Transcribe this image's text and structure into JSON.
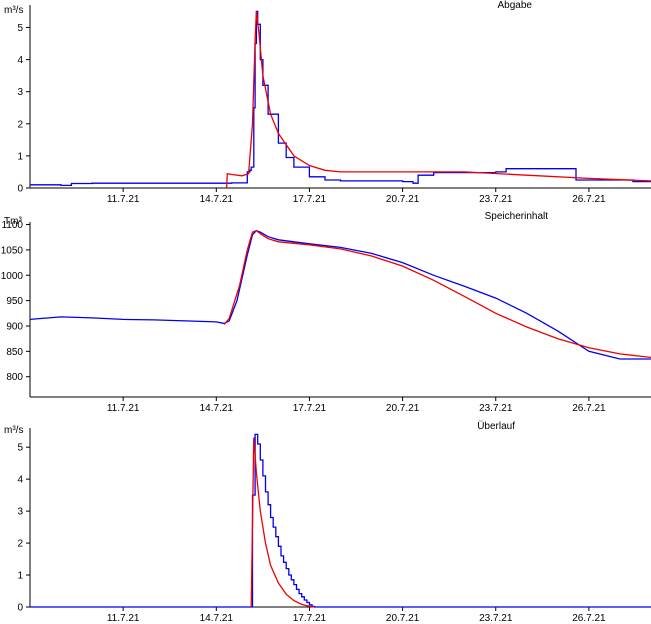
{
  "colors": {
    "blue": "#0000ee",
    "red": "#ee0000",
    "axis": "#000000"
  },
  "chart_data": [
    {
      "type": "line",
      "title": "Abgabe",
      "ylabel": "m³/s",
      "ylim": [
        0,
        5.7
      ],
      "yticks": [
        0,
        1,
        2,
        3,
        4,
        5
      ],
      "xlim": [
        "2021-07-08T00:00",
        "2021-07-28T00:00"
      ],
      "xticks": [
        "11.7.21",
        "14.7.21",
        "17.7.21",
        "20.7.21",
        "23.7.21",
        "26.7.21"
      ],
      "series": [
        {
          "color": "#0000ee",
          "step": true,
          "points": [
            [
              "2021-07-08T00:00",
              0.1
            ],
            [
              "2021-07-09T00:00",
              0.08
            ],
            [
              "2021-07-09T08:00",
              0.14
            ],
            [
              "2021-07-10T00:00",
              0.15
            ],
            [
              "2021-07-14T00:00",
              0.15
            ],
            [
              "2021-07-14T12:00",
              0.16
            ],
            [
              "2021-07-15T00:00",
              0.5
            ],
            [
              "2021-07-15T02:00",
              0.55
            ],
            [
              "2021-07-15T03:00",
              0.65
            ],
            [
              "2021-07-15T05:00",
              2.5
            ],
            [
              "2021-07-15T06:00",
              4.5
            ],
            [
              "2021-07-15T07:00",
              5.5
            ],
            [
              "2021-07-15T08:00",
              5.1
            ],
            [
              "2021-07-15T10:00",
              4.0
            ],
            [
              "2021-07-15T12:00",
              3.2
            ],
            [
              "2021-07-15T16:00",
              2.3
            ],
            [
              "2021-07-16T00:00",
              1.4
            ],
            [
              "2021-07-16T06:00",
              0.95
            ],
            [
              "2021-07-16T12:00",
              0.65
            ],
            [
              "2021-07-17T00:00",
              0.35
            ],
            [
              "2021-07-17T12:00",
              0.25
            ],
            [
              "2021-07-18T00:00",
              0.22
            ],
            [
              "2021-07-20T00:00",
              0.2
            ],
            [
              "2021-07-20T08:00",
              0.15
            ],
            [
              "2021-07-20T12:00",
              0.4
            ],
            [
              "2021-07-21T00:00",
              0.48
            ],
            [
              "2021-07-23T00:00",
              0.5
            ],
            [
              "2021-07-23T08:00",
              0.6
            ],
            [
              "2021-07-25T12:00",
              0.6
            ],
            [
              "2021-07-25T14:00",
              0.25
            ],
            [
              "2021-07-27T06:00",
              0.25
            ],
            [
              "2021-07-27T10:00",
              0.2
            ],
            [
              "2021-07-28T00:00",
              0.2
            ]
          ]
        },
        {
          "color": "#ee0000",
          "step": false,
          "points": [
            [
              "2021-07-14T08:00",
              0.0
            ],
            [
              "2021-07-14T08:30",
              0.45
            ],
            [
              "2021-07-14T12:00",
              0.42
            ],
            [
              "2021-07-14T20:00",
              0.38
            ],
            [
              "2021-07-15T01:00",
              0.45
            ],
            [
              "2021-07-15T04:00",
              2.0
            ],
            [
              "2021-07-15T06:00",
              4.6
            ],
            [
              "2021-07-15T07:00",
              5.5
            ],
            [
              "2021-07-15T09:00",
              4.8
            ],
            [
              "2021-07-15T12:00",
              3.5
            ],
            [
              "2021-07-15T18:00",
              2.3
            ],
            [
              "2021-07-16T00:00",
              1.7
            ],
            [
              "2021-07-16T12:00",
              1.0
            ],
            [
              "2021-07-17T00:00",
              0.7
            ],
            [
              "2021-07-17T12:00",
              0.55
            ],
            [
              "2021-07-18T00:00",
              0.5
            ],
            [
              "2021-07-20T00:00",
              0.5
            ],
            [
              "2021-07-22T00:00",
              0.5
            ],
            [
              "2021-07-24T00:00",
              0.4
            ],
            [
              "2021-07-26T00:00",
              0.3
            ],
            [
              "2021-07-28T00:00",
              0.22
            ]
          ]
        }
      ]
    },
    {
      "type": "line",
      "title": "Speicherinhalt",
      "ylabel": "Tm³",
      "ylim": [
        760,
        1105
      ],
      "yticks": [
        800,
        850,
        900,
        950,
        1000,
        1050,
        1100
      ],
      "xlim": [
        "2021-07-08T00:00",
        "2021-07-28T00:00"
      ],
      "xticks": [
        "11.7.21",
        "14.7.21",
        "17.7.21",
        "20.7.21",
        "23.7.21",
        "26.7.21"
      ],
      "series": [
        {
          "color": "#0000ee",
          "step": false,
          "points": [
            [
              "2021-07-08T00:00",
              913
            ],
            [
              "2021-07-09T00:00",
              918
            ],
            [
              "2021-07-10T00:00",
              916
            ],
            [
              "2021-07-11T00:00",
              913
            ],
            [
              "2021-07-12T00:00",
              912
            ],
            [
              "2021-07-13T00:00",
              910
            ],
            [
              "2021-07-14T00:00",
              908
            ],
            [
              "2021-07-14T06:00",
              905
            ],
            [
              "2021-07-14T10:00",
              910
            ],
            [
              "2021-07-14T16:00",
              950
            ],
            [
              "2021-07-15T00:00",
              1040
            ],
            [
              "2021-07-15T04:00",
              1080
            ],
            [
              "2021-07-15T07:00",
              1088
            ],
            [
              "2021-07-15T10:00",
              1085
            ],
            [
              "2021-07-15T16:00",
              1076
            ],
            [
              "2021-07-16T00:00",
              1070
            ],
            [
              "2021-07-17T00:00",
              1062
            ],
            [
              "2021-07-18T00:00",
              1055
            ],
            [
              "2021-07-19T00:00",
              1043
            ],
            [
              "2021-07-20T00:00",
              1025
            ],
            [
              "2021-07-21T00:00",
              1000
            ],
            [
              "2021-07-22T00:00",
              978
            ],
            [
              "2021-07-23T00:00",
              955
            ],
            [
              "2021-07-24T00:00",
              925
            ],
            [
              "2021-07-25T00:00",
              890
            ],
            [
              "2021-07-26T00:00",
              850
            ],
            [
              "2021-07-27T00:00",
              835
            ],
            [
              "2021-07-28T00:00",
              835
            ]
          ]
        },
        {
          "color": "#ee0000",
          "step": false,
          "points": [
            [
              "2021-07-14T06:00",
              903
            ],
            [
              "2021-07-14T10:00",
              915
            ],
            [
              "2021-07-14T18:00",
              980
            ],
            [
              "2021-07-15T00:00",
              1050
            ],
            [
              "2021-07-15T04:00",
              1085
            ],
            [
              "2021-07-15T07:00",
              1088
            ],
            [
              "2021-07-15T10:00",
              1082
            ],
            [
              "2021-07-15T16:00",
              1072
            ],
            [
              "2021-07-16T00:00",
              1066
            ],
            [
              "2021-07-17T00:00",
              1060
            ],
            [
              "2021-07-18T00:00",
              1052
            ],
            [
              "2021-07-19T00:00",
              1038
            ],
            [
              "2021-07-20T00:00",
              1018
            ],
            [
              "2021-07-21T00:00",
              990
            ],
            [
              "2021-07-22T00:00",
              958
            ],
            [
              "2021-07-23T00:00",
              925
            ],
            [
              "2021-07-24T00:00",
              898
            ],
            [
              "2021-07-25T00:00",
              875
            ],
            [
              "2021-07-26T00:00",
              857
            ],
            [
              "2021-07-27T00:00",
              845
            ],
            [
              "2021-07-28T00:00",
              838
            ]
          ]
        }
      ]
    },
    {
      "type": "line",
      "title": "Überlauf",
      "ylabel": "m³/s",
      "ylim": [
        0,
        5.6
      ],
      "yticks": [
        0,
        1,
        2,
        3,
        4,
        5
      ],
      "xlim": [
        "2021-07-08T00:00",
        "2021-07-28T00:00"
      ],
      "xticks": [
        "11.7.21",
        "14.7.21",
        "17.7.21",
        "20.7.21",
        "23.7.21",
        "26.7.21"
      ],
      "series": [
        {
          "color": "#0000ee",
          "step": true,
          "points": [
            [
              "2021-07-08T00:00",
              0
            ],
            [
              "2021-07-15T02:00",
              0
            ],
            [
              "2021-07-15T04:00",
              3.5
            ],
            [
              "2021-07-15T06:00",
              5.4
            ],
            [
              "2021-07-15T08:00",
              5.1
            ],
            [
              "2021-07-15T10:00",
              4.6
            ],
            [
              "2021-07-15T12:00",
              4.1
            ],
            [
              "2021-07-15T14:00",
              3.6
            ],
            [
              "2021-07-15T16:00",
              3.2
            ],
            [
              "2021-07-15T18:00",
              2.8
            ],
            [
              "2021-07-15T20:00",
              2.5
            ],
            [
              "2021-07-15T22:00",
              2.2
            ],
            [
              "2021-07-16T00:00",
              1.9
            ],
            [
              "2021-07-16T02:00",
              1.6
            ],
            [
              "2021-07-16T04:00",
              1.4
            ],
            [
              "2021-07-16T06:00",
              1.2
            ],
            [
              "2021-07-16T08:00",
              1.0
            ],
            [
              "2021-07-16T10:00",
              0.85
            ],
            [
              "2021-07-16T12:00",
              0.7
            ],
            [
              "2021-07-16T14:00",
              0.55
            ],
            [
              "2021-07-16T16:00",
              0.42
            ],
            [
              "2021-07-16T18:00",
              0.32
            ],
            [
              "2021-07-16T20:00",
              0.22
            ],
            [
              "2021-07-16T22:00",
              0.14
            ],
            [
              "2021-07-17T00:00",
              0.07
            ],
            [
              "2021-07-17T02:00",
              0.02
            ],
            [
              "2021-07-17T04:00",
              0
            ],
            [
              "2021-07-28T00:00",
              0
            ]
          ]
        },
        {
          "color": "#ee0000",
          "step": false,
          "points": [
            [
              "2021-07-15T03:00",
              0
            ],
            [
              "2021-07-15T05:00",
              5.3
            ],
            [
              "2021-07-15T07:00",
              4.2
            ],
            [
              "2021-07-15T10:00",
              3.0
            ],
            [
              "2021-07-15T14:00",
              2.0
            ],
            [
              "2021-07-15T18:00",
              1.3
            ],
            [
              "2021-07-16T00:00",
              0.75
            ],
            [
              "2021-07-16T06:00",
              0.4
            ],
            [
              "2021-07-16T12:00",
              0.2
            ],
            [
              "2021-07-16T18:00",
              0.08
            ],
            [
              "2021-07-17T00:00",
              0.02
            ],
            [
              "2021-07-17T04:00",
              0
            ]
          ]
        }
      ]
    }
  ]
}
